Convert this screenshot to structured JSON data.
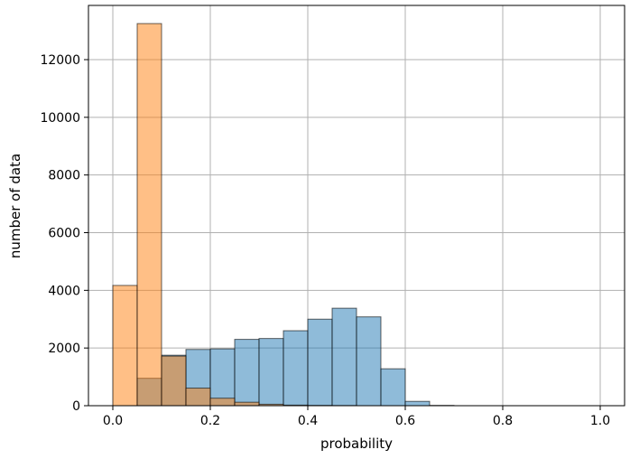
{
  "chart_data": {
    "type": "bar",
    "title": "",
    "xlabel": "probability",
    "ylabel": "number of data",
    "xlim": [
      -0.05,
      1.05
    ],
    "ylim": [
      0,
      13880
    ],
    "grid": true,
    "legend": "none",
    "bin_width": 0.05,
    "bin_edges": [
      0.0,
      0.05,
      0.1,
      0.15,
      0.2,
      0.25,
      0.3,
      0.35,
      0.4,
      0.45,
      0.5,
      0.55,
      0.6,
      0.65,
      0.7,
      0.75,
      0.8,
      0.85,
      0.9,
      0.95,
      1.0
    ],
    "x_ticks": [
      "0.0",
      "0.2",
      "0.4",
      "0.6",
      "0.8",
      "1.0"
    ],
    "y_ticks": [
      "0",
      "2000",
      "4000",
      "6000",
      "8000",
      "10000",
      "12000"
    ],
    "series": [
      {
        "color": "#1f77b4",
        "alpha": 0.5,
        "values": [
          0,
          950,
          1750,
          1950,
          1970,
          2300,
          2330,
          2600,
          3000,
          3380,
          3080,
          1280,
          150,
          10,
          0,
          0,
          0,
          0,
          0,
          0
        ]
      },
      {
        "color": "#ff7f0e",
        "alpha": 0.5,
        "values": [
          4170,
          13250,
          1720,
          610,
          260,
          120,
          50,
          20,
          10,
          5,
          0,
          0,
          0,
          0,
          0,
          0,
          0,
          0,
          0,
          0
        ]
      }
    ]
  }
}
